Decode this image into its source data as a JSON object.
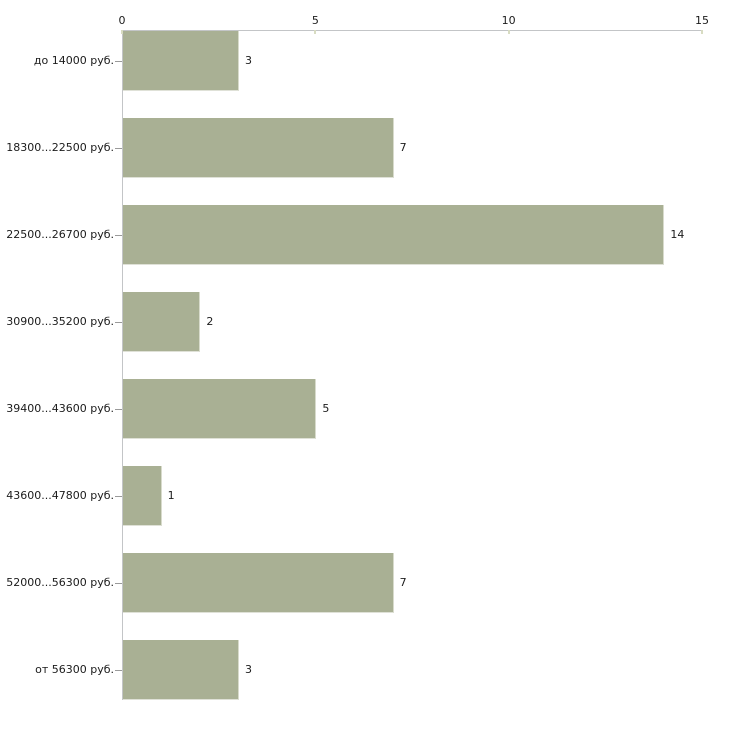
{
  "chart_data": {
    "type": "bar",
    "orientation": "horizontal",
    "title": "",
    "xlabel": "",
    "ylabel": "",
    "categories": [
      "до 14000 руб.",
      "18300...22500 руб.",
      "22500...26700 руб.",
      "30900...35200 руб.",
      "39400...43600 руб.",
      "43600...47800 руб.",
      "52000...56300 руб.",
      "от 56300 руб."
    ],
    "values": [
      3,
      7,
      14,
      2,
      5,
      1,
      7,
      3
    ],
    "value_labels_shown": true,
    "x_axis": {
      "position": "top",
      "min": 0,
      "max": 15,
      "ticks": [
        0,
        5,
        10,
        15
      ]
    },
    "grid": false,
    "legend": false,
    "colors": {
      "bar_fill": "#a9b094",
      "axis_line": "#c3c5c7",
      "axis_tick": "#d8dcc2",
      "category_tick": "#9a9a9a",
      "text": "#1b1b1b",
      "background": "#ffffff"
    }
  }
}
